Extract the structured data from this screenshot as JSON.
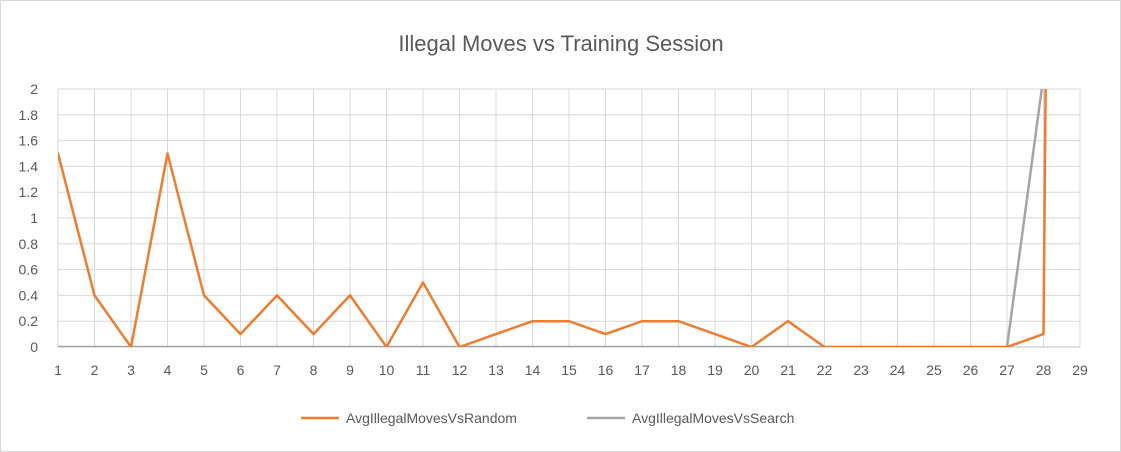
{
  "chart_data": {
    "type": "line",
    "title": "Illegal Moves vs Training Session",
    "xlabel": "",
    "ylabel": "",
    "x": [
      1,
      2,
      3,
      4,
      5,
      6,
      7,
      8,
      9,
      10,
      11,
      12,
      13,
      14,
      15,
      16,
      17,
      18,
      19,
      20,
      21,
      22,
      23,
      24,
      25,
      26,
      27,
      28,
      29
    ],
    "x_tick_labels": [
      "1",
      "2",
      "3",
      "4",
      "5",
      "6",
      "7",
      "8",
      "9",
      "10",
      "11",
      "12",
      "13",
      "14",
      "15",
      "16",
      "17",
      "18",
      "19",
      "20",
      "21",
      "22",
      "23",
      "24",
      "25",
      "26",
      "27",
      "28",
      "29"
    ],
    "ylim": [
      0,
      2
    ],
    "y_tick_labels": [
      "0",
      "0.2",
      "0.4",
      "0.6",
      "0.8",
      "1",
      "1.2",
      "1.4",
      "1.6",
      "1.8",
      "2"
    ],
    "y_ticks": [
      0,
      0.2,
      0.4,
      0.6,
      0.8,
      1,
      1.2,
      1.4,
      1.6,
      1.8,
      2
    ],
    "grid": true,
    "legend_position": "bottom",
    "series": [
      {
        "name": "AvgIllegalMovesVsRandom",
        "color": "#ed7d31",
        "x": [
          1,
          2,
          3,
          4,
          5,
          6,
          7,
          8,
          9,
          10,
          11,
          12,
          13,
          14,
          15,
          16,
          17,
          18,
          19,
          20,
          21,
          22,
          23,
          24,
          25,
          26,
          27,
          28,
          28.06
        ],
        "values": [
          1.5,
          0.4,
          0,
          1.5,
          0.4,
          0.1,
          0.4,
          0.1,
          0.4,
          0,
          0.5,
          0,
          0.1,
          0.2,
          0.2,
          0.1,
          0.2,
          0.2,
          0.1,
          0,
          0.2,
          0,
          0,
          0,
          0,
          0,
          0,
          0.1,
          2.1
        ]
      },
      {
        "name": "AvgIllegalMovesVsSearch",
        "color": "#a5a5a5",
        "x": [
          1,
          2,
          3,
          4,
          5,
          6,
          7,
          8,
          9,
          10,
          11,
          12,
          13,
          14,
          15,
          16,
          17,
          18,
          19,
          20,
          21,
          22,
          23,
          24,
          25,
          26,
          27,
          28
        ],
        "values": [
          0,
          0,
          0,
          0,
          0,
          0,
          0,
          0,
          0,
          0,
          0,
          0,
          0,
          0,
          0,
          0,
          0,
          0,
          0,
          0,
          0,
          0,
          0,
          0,
          0,
          0,
          0,
          2.1
        ]
      }
    ]
  }
}
